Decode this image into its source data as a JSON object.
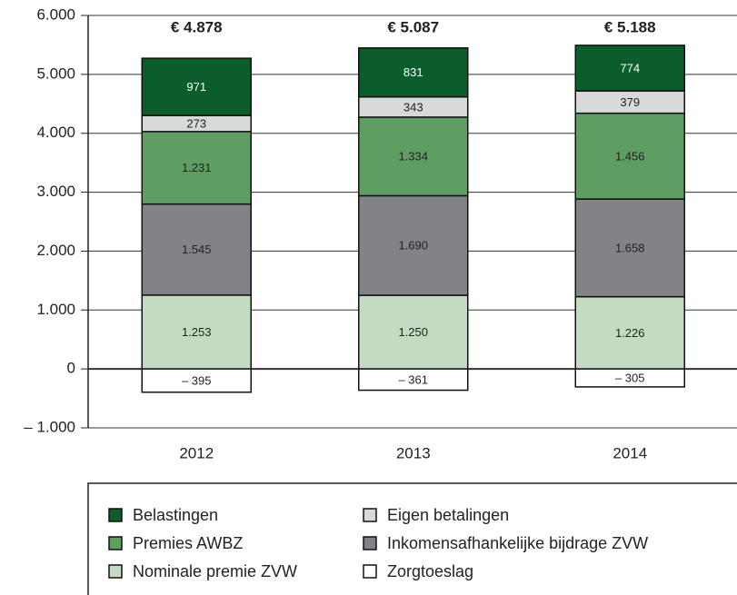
{
  "chart_data": {
    "type": "stacked_bar",
    "categories": [
      "2012",
      "2013",
      "2014"
    ],
    "annotations": [
      "€ 4.878",
      "€ 5.087",
      "€ 5.188"
    ],
    "series": [
      {
        "name": "Nominale premie ZVW",
        "color": "#c3dcc1",
        "values": [
          1253,
          1250,
          1226
        ],
        "value_labels": [
          "1.253",
          "1.250",
          "1.226"
        ]
      },
      {
        "name": "Inkomensafhankelijke bijdrage ZVW",
        "color": "#818386",
        "values": [
          1545,
          1690,
          1658
        ],
        "value_labels": [
          "1.545",
          "1.690",
          "1.658"
        ]
      },
      {
        "name": "Premies AWBZ",
        "color": "#5f9e63",
        "values": [
          1231,
          1334,
          1456
        ],
        "value_labels": [
          "1.231",
          "1.334",
          "1.456"
        ]
      },
      {
        "name": "Eigen betalingen",
        "color": "#d9d9d9",
        "values": [
          273,
          343,
          379
        ]
      },
      {
        "name": "Belastingen",
        "color": "#0b5e2b",
        "values": [
          971,
          831,
          774
        ]
      },
      {
        "name": "Zorgtoeslag",
        "color": "#ffffff",
        "values": [
          -395,
          -361,
          -305
        ],
        "value_labels": [
          "– 395",
          "– 361",
          "– 305"
        ]
      }
    ],
    "legend_order": [
      4,
      3,
      2,
      1,
      0,
      5
    ],
    "ylim": [
      -1000,
      6000
    ],
    "yticks": [
      {
        "value": -1000,
        "label": "– 1.000"
      },
      0,
      {
        "value": 1000,
        "label": "1.000"
      },
      {
        "value": 2000,
        "label": "2.000"
      },
      {
        "value": 3000,
        "label": "3.000"
      },
      {
        "value": 4000,
        "label": "4.000"
      },
      {
        "value": 5000,
        "label": "5.000"
      },
      {
        "value": 6000,
        "label": "6.000"
      }
    ],
    "grid": true
  }
}
